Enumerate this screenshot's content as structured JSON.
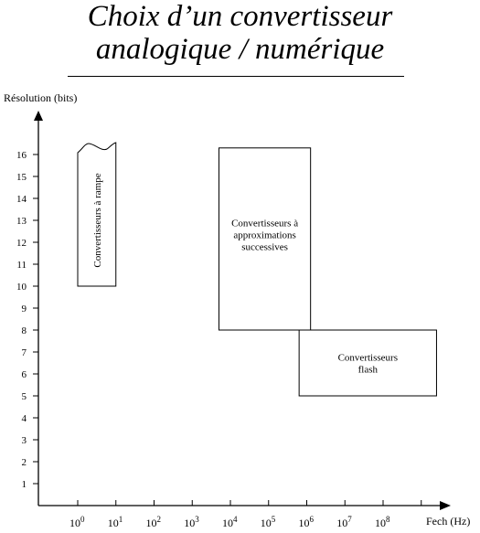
{
  "title": {
    "line1": "Choix d’un convertisseur",
    "line2": "analogique / numérique"
  },
  "axes": {
    "y_label": "Résolution (bits)",
    "x_label": "Fech (Hz)",
    "y_ticks": [
      1,
      2,
      3,
      4,
      5,
      6,
      7,
      8,
      9,
      10,
      11,
      12,
      13,
      14,
      15,
      16
    ],
    "x_ticks": [
      {
        "base": "10",
        "exp": "0"
      },
      {
        "base": "10",
        "exp": "1"
      },
      {
        "base": "10",
        "exp": "2"
      },
      {
        "base": "10",
        "exp": "3"
      },
      {
        "base": "10",
        "exp": "4"
      },
      {
        "base": "10",
        "exp": "5"
      },
      {
        "base": "10",
        "exp": "6"
      },
      {
        "base": "10",
        "exp": "7"
      },
      {
        "base": "10",
        "exp": "8"
      }
    ]
  },
  "regions": [
    {
      "id": "rampe",
      "label": "Convertisseurs à rampe",
      "x_from_exp": 0,
      "x_to_exp": 1,
      "bits_from": 10,
      "bits_to": 16,
      "open_top": true
    },
    {
      "id": "approx",
      "label_lines": [
        "Convertisseurs à",
        "approximations",
        "successives"
      ],
      "x_from_exp": 3.7,
      "x_to_exp": 6.1,
      "bits_from": 8,
      "bits_to": 16.3
    },
    {
      "id": "flash",
      "label_lines": [
        "Convertisseurs",
        "flash"
      ],
      "x_from_exp": 5.8,
      "x_to_exp": 9.4,
      "bits_from": 5,
      "bits_to": 8
    }
  ]
}
